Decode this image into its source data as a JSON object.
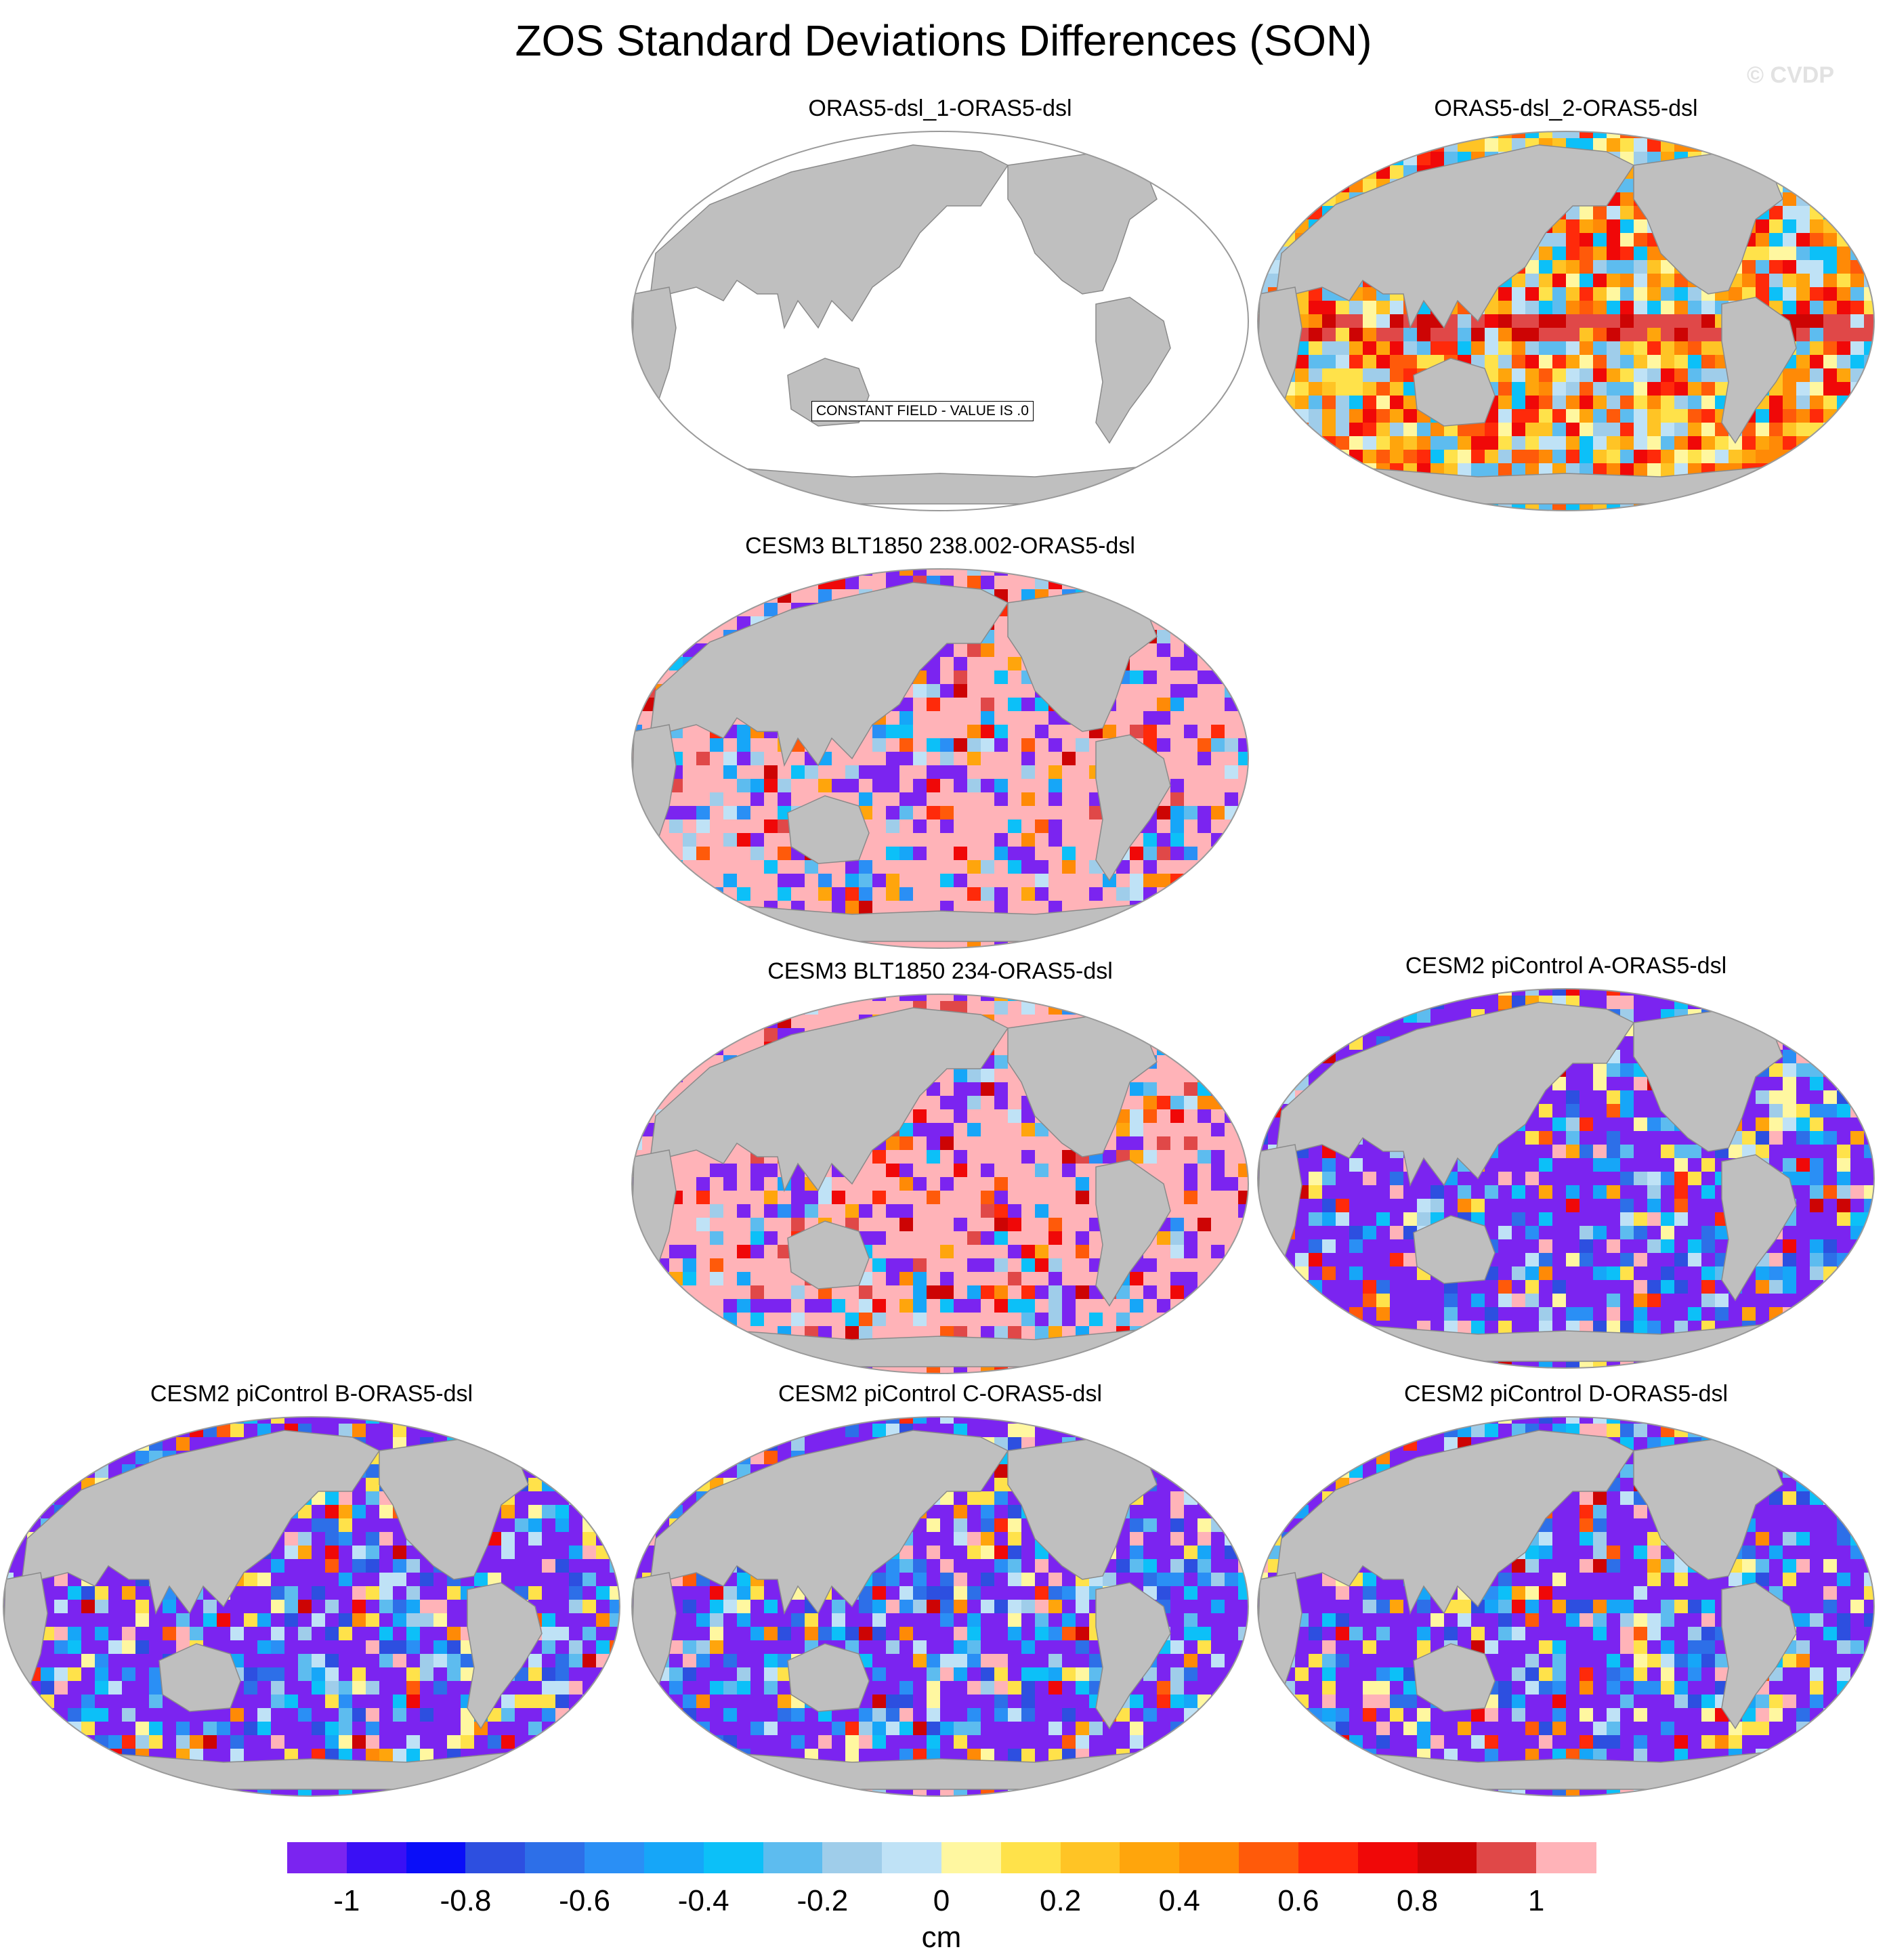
{
  "title": "ZOS Standard Deviations Differences (SON)",
  "copyright": "© CVDP",
  "panels": [
    {
      "label": "ORAS5-dsl_1-ORAS5-dsl",
      "pattern": "constant",
      "note": "CONSTANT FIELD - VALUE IS .0"
    },
    {
      "label": "ORAS5-dsl_2-ORAS5-dsl",
      "pattern": "mixed"
    },
    {
      "label": "CESM3 BLT1850 238.002-ORAS5-dsl",
      "pattern": "positive"
    },
    {
      "label": "CESM3 BLT1850 234-ORAS5-dsl",
      "pattern": "positive"
    },
    {
      "label": "CESM2 piControl A-ORAS5-dsl",
      "pattern": "negative"
    },
    {
      "label": "CESM2 piControl B-ORAS5-dsl",
      "pattern": "negative"
    },
    {
      "label": "CESM2 piControl C-ORAS5-dsl",
      "pattern": "negative"
    },
    {
      "label": "CESM2 piControl D-ORAS5-dsl",
      "pattern": "negative"
    }
  ],
  "colorbar": {
    "units": "cm",
    "tick_labels": [
      "-1",
      "-0.8",
      "-0.6",
      "-0.4",
      "-0.2",
      "0",
      "0.2",
      "0.4",
      "0.6",
      "0.8",
      "1"
    ],
    "colors": [
      "#7b24f0",
      "#3a10f5",
      "#0a0ef8",
      "#2d4fe0",
      "#2d6fe8",
      "#2a8ff5",
      "#16a6f8",
      "#0cc0f8",
      "#5dbcef",
      "#9fcdea",
      "#bfe2f6",
      "#fff7a0",
      "#ffe24a",
      "#ffc425",
      "#ffa50c",
      "#ff8a06",
      "#ff5a0a",
      "#ff2a0a",
      "#f00808",
      "#cd0404",
      "#e04848",
      "#ffb3b8"
    ]
  },
  "map_colors": {
    "land": "#bfbfbf",
    "coast": "#8a8a8a",
    "ocean_blank": "#ffffff"
  }
}
